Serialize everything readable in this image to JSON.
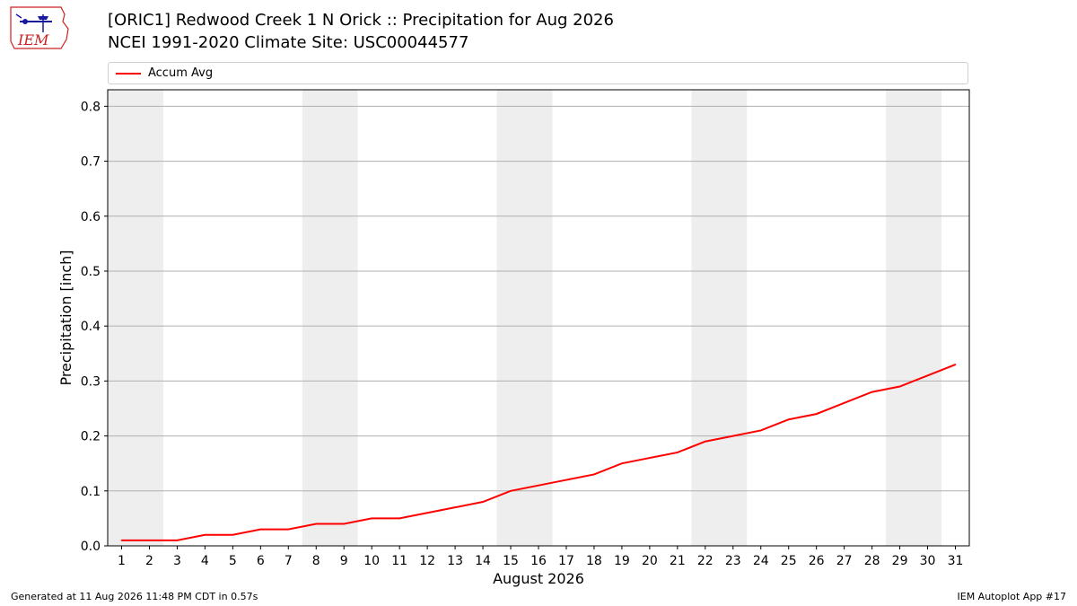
{
  "header": {
    "title_line1": "[ORIC1] Redwood Creek 1 N Orick :: Precipitation for Aug 2026",
    "title_line2": "NCEI 1991-2020 Climate Site: USC00044577"
  },
  "logo": {
    "text": "IEM",
    "icon": "iem-logo-icon"
  },
  "footer": {
    "left": "Generated at 11 Aug 2026 11:48 PM CDT in 0.57s",
    "right": "IEM Autoplot App #17"
  },
  "colors": {
    "line": "#ff0000",
    "weekend_band": "#eeeeee",
    "grid": "#b0b0b0",
    "logo_red": "#cc2222",
    "logo_blue": "#1a1aa0"
  },
  "chart_data": {
    "type": "line",
    "title": "[ORIC1] Redwood Creek 1 N Orick :: Precipitation for Aug 2026",
    "subtitle": "NCEI 1991-2020 Climate Site: USC00044577",
    "xlabel": "August 2026",
    "ylabel": "Precipitation [inch]",
    "xlim": [
      0.5,
      31.5
    ],
    "ylim": [
      0,
      0.83
    ],
    "yticks": [
      0.0,
      0.1,
      0.2,
      0.3,
      0.4,
      0.5,
      0.6,
      0.7,
      0.8
    ],
    "ytick_labels": [
      "0.0",
      "0.1",
      "0.2",
      "0.3",
      "0.4",
      "0.5",
      "0.6",
      "0.7",
      "0.8"
    ],
    "grid": "horizontal",
    "legend_position": "top",
    "x": [
      1,
      2,
      3,
      4,
      5,
      6,
      7,
      8,
      9,
      10,
      11,
      12,
      13,
      14,
      15,
      16,
      17,
      18,
      19,
      20,
      21,
      22,
      23,
      24,
      25,
      26,
      27,
      28,
      29,
      30,
      31
    ],
    "weekend_bands": [
      [
        0.5,
        2.5
      ],
      [
        7.5,
        9.5
      ],
      [
        14.5,
        16.5
      ],
      [
        21.5,
        23.5
      ],
      [
        28.5,
        30.5
      ]
    ],
    "series": [
      {
        "name": "Accum Avg",
        "color": "#ff0000",
        "values": [
          0.01,
          0.01,
          0.01,
          0.02,
          0.02,
          0.03,
          0.03,
          0.04,
          0.04,
          0.05,
          0.05,
          0.06,
          0.07,
          0.08,
          0.1,
          0.11,
          0.12,
          0.13,
          0.15,
          0.16,
          0.17,
          0.19,
          0.2,
          0.21,
          0.23,
          0.24,
          0.26,
          0.28,
          0.29,
          0.31,
          0.33
        ]
      }
    ]
  }
}
